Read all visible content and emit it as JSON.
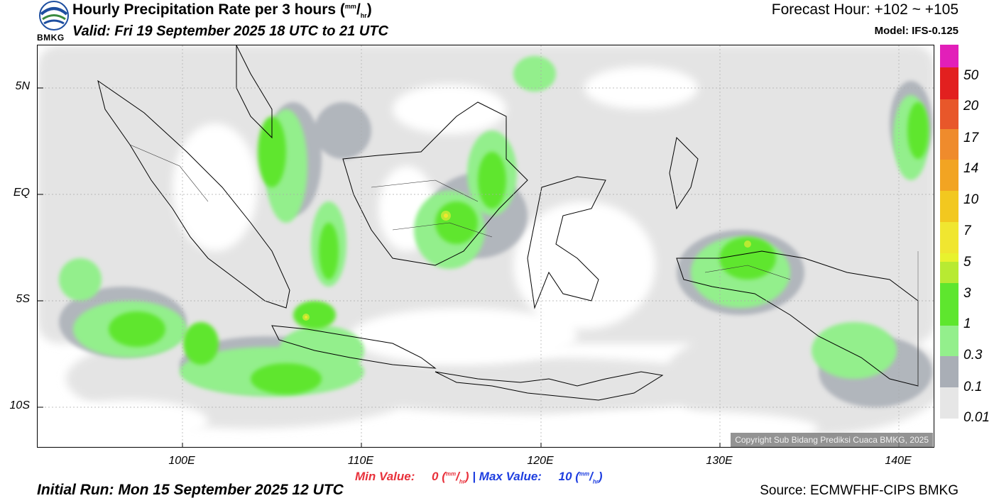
{
  "header": {
    "logo_text": "BMKG",
    "title": "Hourly Precipitation Rate per 3 hours",
    "title_unit_sup": "mm",
    "title_unit_sub": "hr",
    "valid": "Valid: Fri 19 September 2025 18 UTC to 21 UTC",
    "forecast_hour": "Forecast Hour: +102 ~ +105",
    "model": "Model: IFS-0.125"
  },
  "map": {
    "lat_labels": [
      "5N",
      "EQ",
      "5S",
      "10S"
    ],
    "lon_labels": [
      "100E",
      "110E",
      "120E",
      "130E",
      "140E"
    ],
    "copyright": "Copyright Sub Bidang Prediksi Cuaca BMKG, 2025"
  },
  "colorbar": {
    "labels": [
      "50",
      "20",
      "17",
      "14",
      "10",
      "7",
      "5",
      "3",
      "1",
      "0.3",
      "0.1",
      "0.01"
    ],
    "colors": [
      "#e21fb9",
      "#e2201f",
      "#e8572a",
      "#ef8b2c",
      "#f2a422",
      "#f2c81f",
      "#f0e630",
      "#e8f22e",
      "#b8ea32",
      "#5ee62e",
      "#93ef8c",
      "#a9aeb6",
      "#e6e6e6"
    ]
  },
  "footer": {
    "min_label": "Min Value:",
    "min_value": "0",
    "max_label": "Max Value:",
    "max_value": "10",
    "unit_sup": "mm",
    "unit_sub": "hr",
    "separator": "|",
    "initial_run": "Initial Run: Mon 15 September 2025 12 UTC",
    "source": "Source: ECMWFHF-CIPS BMKG"
  }
}
